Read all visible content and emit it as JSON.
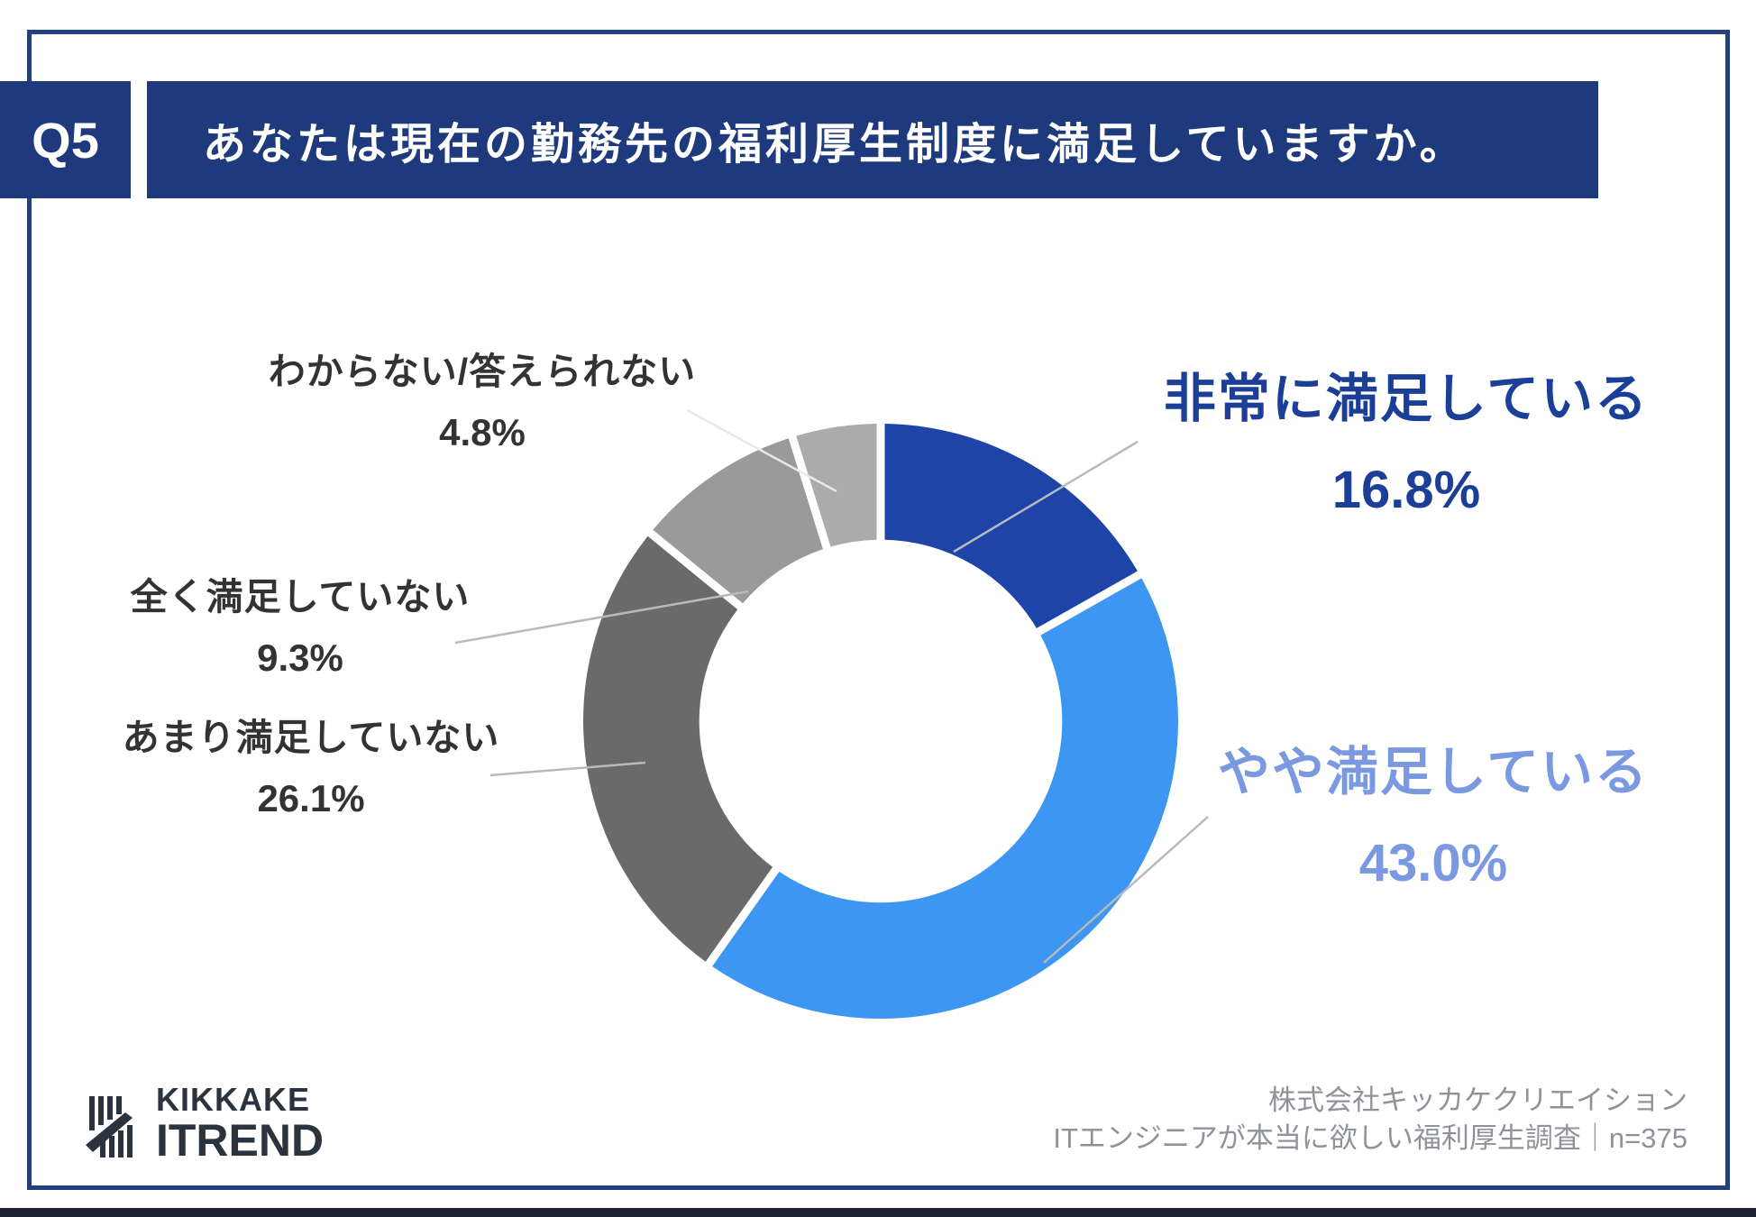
{
  "header": {
    "question_number": "Q5",
    "title": "あなたは現在の勤務先の福利厚生制度に満足していますか。"
  },
  "chart_data": {
    "type": "pie",
    "subtype": "donut",
    "start_position": "12-oclock",
    "direction": "clockwise",
    "donut_hole_ratio": 0.61,
    "slice_gap_color": "#ffffff",
    "legend_position": "callout-labels",
    "unit": "%",
    "series": [
      {
        "label": "非常に満足している",
        "value": 16.8,
        "pct_label": "16.8%",
        "color": "#1e44a8",
        "label_color": "#1b3e96"
      },
      {
        "label": "やや満足している",
        "value": 43.0,
        "pct_label": "43.0%",
        "color": "#3c96f2",
        "label_color": "#7a99e0"
      },
      {
        "label": "あまり満足していない",
        "value": 26.1,
        "pct_label": "26.1%",
        "color": "#6a6a6a",
        "label_color": "#333333"
      },
      {
        "label": "全く満足していない",
        "value": 9.3,
        "pct_label": "9.3%",
        "color": "#9a9a9a",
        "label_color": "#333333"
      },
      {
        "label": "わからない/答えられない",
        "value": 4.8,
        "pct_label": "4.8%",
        "color": "#ababab",
        "label_color": "#333333"
      }
    ]
  },
  "footer": {
    "logo_line1": "KIKKAKE",
    "logo_line2": "ITREND",
    "credit_line1": "株式会社キッカケクリエイション",
    "credit_line2": "ITエンジニアが本当に欲しい福利厚生調査｜n=375"
  },
  "colors": {
    "banner_navy": "#1e3a7c",
    "frame_navy": "#22407c",
    "bottom_strip": "#1c2433",
    "leader_line": "#b6babf",
    "logo_text": "#2b333f",
    "credit_gray": "#8f9399"
  }
}
